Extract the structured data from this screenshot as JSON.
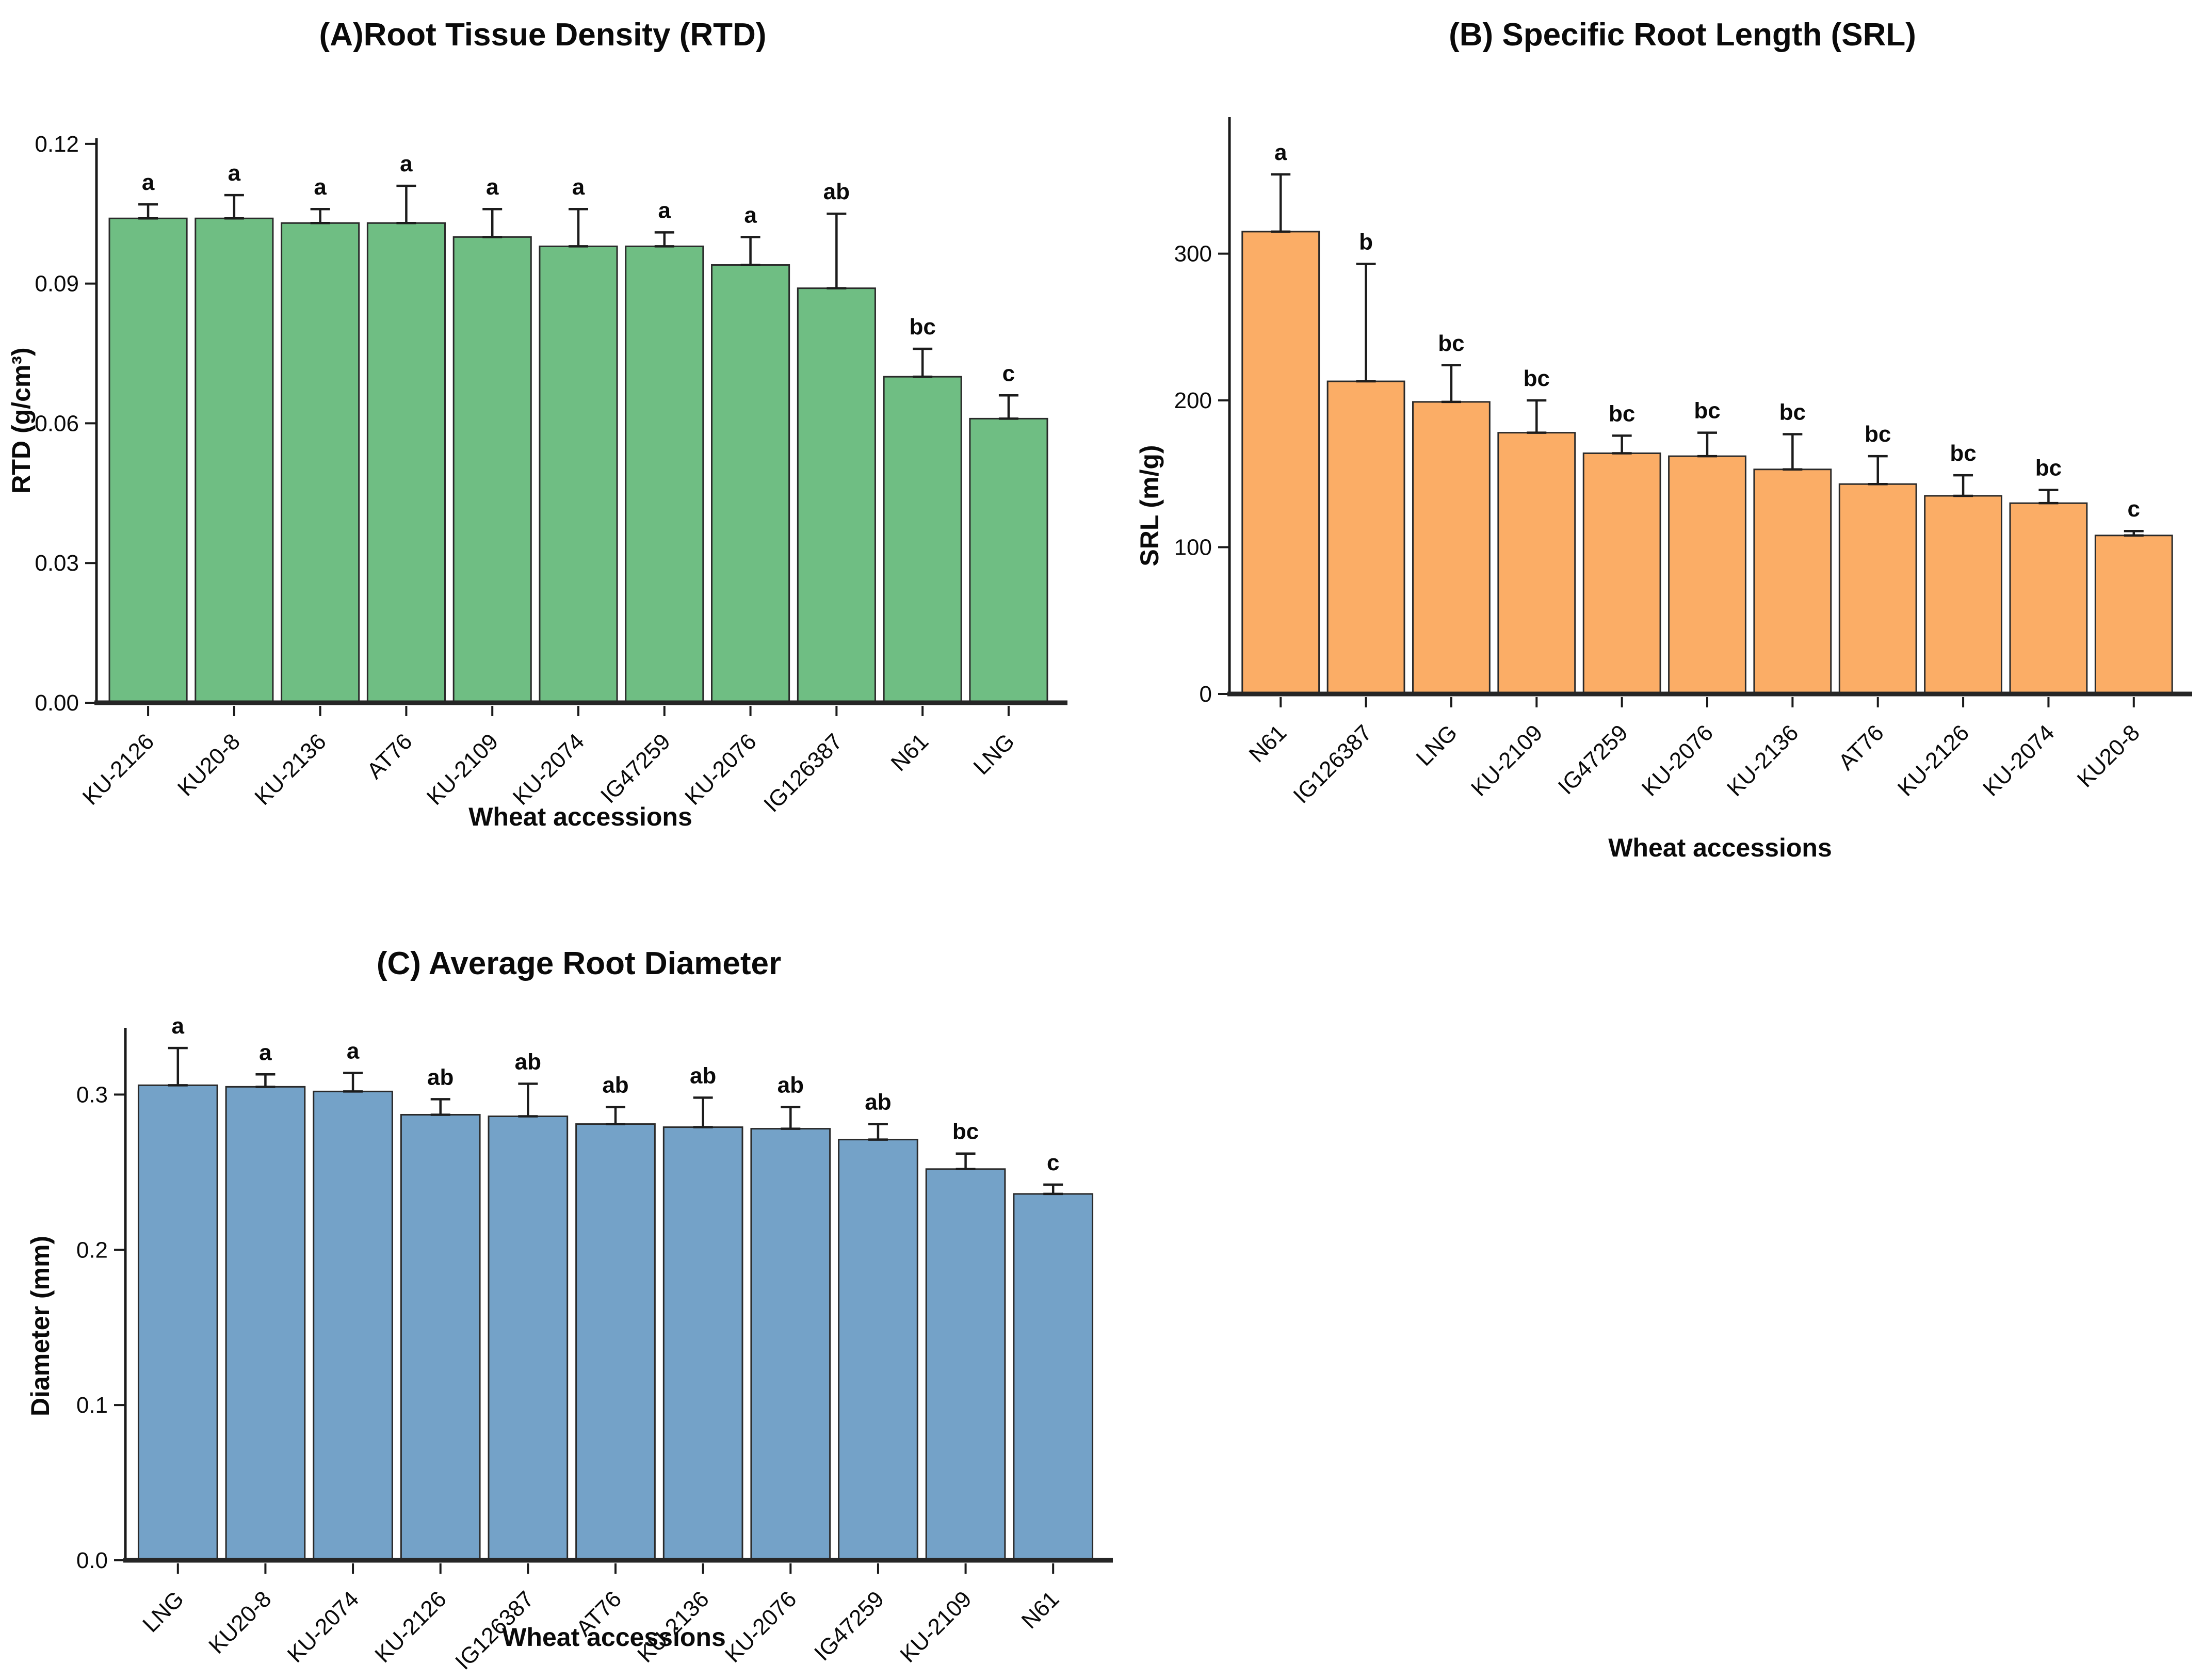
{
  "figure": {
    "background": "#ffffff",
    "axis_color": "#1a1a1a",
    "error_bar_color": "#1c1c1c",
    "bar_stroke_color": "#2a2a2a"
  },
  "chart_data": [
    {
      "id": "panel-a-rtd",
      "type": "bar",
      "title": "(A)Root Tissue Density (RTD)",
      "xlabel": "Wheat accessions",
      "ylabel": "RTD (g/cm³)",
      "bar_color": "#6FBE83",
      "grid": false,
      "legend": "none",
      "ylim": [
        0,
        0.1212
      ],
      "yticks": [
        0,
        0.03,
        0.06,
        0.09,
        0.12
      ],
      "ytick_labels": [
        "0.00",
        "0.03",
        "0.06",
        "0.09",
        "0.12"
      ],
      "categories": [
        "KU-2126",
        "KU20-8",
        "KU-2136",
        "AT76",
        "KU-2109",
        "KU-2074",
        "IG47259",
        "KU-2076",
        "IG126387",
        "N61",
        "LNG"
      ],
      "values": [
        0.104,
        0.104,
        0.103,
        0.103,
        0.1,
        0.098,
        0.098,
        0.094,
        0.089,
        0.07,
        0.061
      ],
      "errors": [
        0.003,
        0.005,
        0.003,
        0.008,
        0.006,
        0.008,
        0.003,
        0.006,
        0.016,
        0.006,
        0.005
      ],
      "letters": [
        "a",
        "a",
        "a",
        "a",
        "a",
        "a",
        "a",
        "a",
        "ab",
        "bc",
        "c"
      ]
    },
    {
      "id": "panel-b-srl",
      "type": "bar",
      "title": "(B) Specific Root Length (SRL)",
      "xlabel": "Wheat accessions",
      "ylabel": "SRL (m/g)",
      "bar_color": "#FBAD66",
      "grid": false,
      "legend": "none",
      "ylim": [
        0,
        393
      ],
      "yticks": [
        0,
        100,
        200,
        300
      ],
      "ytick_labels": [
        "0",
        "100",
        "200",
        "300"
      ],
      "categories": [
        "N61",
        "IG126387",
        "LNG",
        "KU-2109",
        "IG47259",
        "KU-2076",
        "KU-2136",
        "AT76",
        "KU-2126",
        "KU-2074",
        "KU20-8"
      ],
      "values": [
        315,
        213,
        199,
        178,
        164,
        162,
        153,
        143,
        135,
        130,
        108
      ],
      "errors": [
        39,
        80,
        25,
        22,
        12,
        16,
        24,
        19,
        14,
        9,
        3
      ],
      "letters": [
        "a",
        "b",
        "bc",
        "bc",
        "bc",
        "bc",
        "bc",
        "bc",
        "bc",
        "bc",
        "c"
      ]
    },
    {
      "id": "panel-c-diameter",
      "type": "bar",
      "title": "(C)  Average Root Diameter",
      "xlabel": "Wheat accessions",
      "ylabel": "Diameter (mm)",
      "bar_color": "#74A2C8",
      "grid": false,
      "legend": "none",
      "ylim": [
        0,
        0.343
      ],
      "yticks": [
        0,
        0.1,
        0.2,
        0.3
      ],
      "ytick_labels": [
        "0.0",
        "0.1",
        "0.2",
        "0.3"
      ],
      "categories": [
        "LNG",
        "KU20-8",
        "KU-2074",
        "KU-2126",
        "IG126387",
        "AT76",
        "KU-2136",
        "KU-2076",
        "IG47259",
        "KU-2109",
        "N61"
      ],
      "values": [
        0.306,
        0.305,
        0.302,
        0.287,
        0.286,
        0.281,
        0.279,
        0.278,
        0.271,
        0.252,
        0.236
      ],
      "errors": [
        0.024,
        0.008,
        0.012,
        0.01,
        0.021,
        0.011,
        0.019,
        0.014,
        0.01,
        0.01,
        0.006
      ],
      "letters": [
        "a",
        "a",
        "a",
        "ab",
        "ab",
        "ab",
        "ab",
        "ab",
        "ab",
        "bc",
        "c"
      ]
    }
  ]
}
